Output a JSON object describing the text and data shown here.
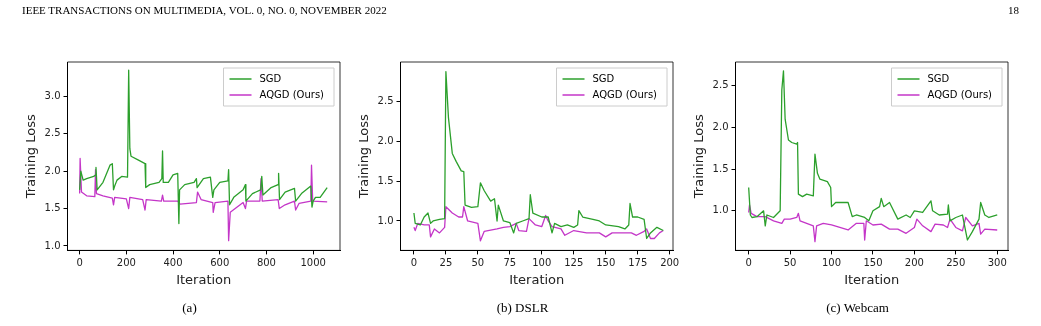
{
  "chart_data": [
    {
      "type": "line",
      "xlabel": "Iteration",
      "ylabel": "Training Loss",
      "xlim": [
        -52,
        1115
      ],
      "xticks": [
        0,
        200,
        400,
        600,
        800,
        1000
      ],
      "ylim": [
        0.94,
        3.46
      ],
      "yticks": [
        {
          "value": 1.0,
          "label": "1.0"
        },
        {
          "value": 1.5,
          "label": "1.5"
        },
        {
          "value": 2.0,
          "label": "2.0"
        },
        {
          "value": 2.5,
          "label": "2.5"
        },
        {
          "value": 3.0,
          "label": "3.0"
        }
      ],
      "grid": false,
      "legend": "top right",
      "marker": "none",
      "line_style": "solid",
      "annotations": [
        "IEEE TRANSACTIONS ON MULTIMEDIA, VOL. 0, NO. 0, NOVEMBER 2022",
        "18",
        "(a)"
      ],
      "series": [
        {
          "name": "SGD",
          "color": "#2ca02c",
          "x": [
            0,
            5,
            15,
            30,
            60,
            68,
            70,
            75,
            100,
            130,
            140,
            145,
            150,
            160,
            180,
            205,
            210,
            215,
            220,
            250,
            280,
            283,
            300,
            340,
            352,
            355,
            358,
            380,
            400,
            420,
            425,
            428,
            450,
            490,
            500,
            503,
            530,
            560,
            570,
            575,
            600,
            635,
            638,
            642,
            660,
            700,
            710,
            712,
            740,
            775,
            780,
            785,
            820,
            850,
            852,
            856,
            880,
            920,
            925,
            950,
            990,
            995,
            1000,
            1010,
            1030,
            1060
          ],
          "values": [
            1.75,
            2.0,
            1.88,
            1.9,
            1.93,
            1.95,
            2.05,
            1.75,
            1.85,
            2.08,
            2.1,
            1.75,
            1.8,
            1.88,
            1.93,
            1.92,
            3.35,
            2.3,
            2.2,
            2.15,
            2.1,
            1.78,
            1.82,
            1.85,
            1.9,
            2.27,
            1.85,
            1.85,
            1.95,
            1.97,
            1.3,
            1.75,
            1.82,
            1.85,
            1.9,
            1.78,
            1.9,
            1.92,
            1.65,
            1.75,
            1.85,
            1.87,
            2.02,
            1.55,
            1.65,
            1.75,
            1.82,
            1.6,
            1.7,
            1.75,
            1.93,
            1.68,
            1.78,
            1.82,
            1.97,
            1.62,
            1.72,
            1.77,
            1.6,
            1.7,
            1.8,
            1.52,
            1.6,
            1.65,
            1.65,
            1.78
          ]
        },
        {
          "name": "AQGD (Ours)",
          "color": "#c436c8",
          "x": [
            0,
            2,
            8,
            30,
            65,
            68,
            72,
            100,
            140,
            145,
            150,
            200,
            210,
            215,
            270,
            280,
            285,
            350,
            355,
            360,
            420,
            425,
            430,
            500,
            505,
            520,
            570,
            572,
            580,
            635,
            638,
            645,
            700,
            710,
            715,
            772,
            777,
            782,
            850,
            855,
            880,
            920,
            925,
            940,
            990,
            993,
            998,
            1060
          ],
          "values": [
            1.7,
            2.17,
            1.72,
            1.67,
            1.66,
            2.02,
            1.7,
            1.67,
            1.64,
            1.55,
            1.65,
            1.63,
            1.5,
            1.65,
            1.62,
            1.48,
            1.62,
            1.6,
            1.68,
            1.6,
            1.6,
            1.58,
            1.56,
            1.58,
            1.72,
            1.62,
            1.58,
            1.45,
            1.58,
            1.6,
            1.07,
            1.45,
            1.58,
            1.5,
            1.6,
            1.6,
            1.9,
            1.6,
            1.62,
            1.5,
            1.55,
            1.6,
            1.48,
            1.57,
            1.6,
            2.08,
            1.6,
            1.59
          ]
        }
      ]
    },
    {
      "type": "line",
      "xlabel": "Iteration",
      "ylabel": "Training Loss",
      "xlim": [
        -10.5,
        202.6
      ],
      "xticks": [
        0,
        25,
        50,
        75,
        100,
        125,
        150,
        175,
        200
      ],
      "ylim": [
        0.63,
        3.0
      ],
      "yticks": [
        {
          "value": 1.0,
          "label": "1.0"
        },
        {
          "value": 1.5,
          "label": "1.5"
        },
        {
          "value": 2.0,
          "label": "2.0"
        },
        {
          "value": 2.5,
          "label": "2.5"
        }
      ],
      "grid": false,
      "legend": "top right",
      "marker": "none",
      "line_style": "solid",
      "annotations": [
        "(b) DSLR"
      ],
      "series": [
        {
          "name": "SGD",
          "color": "#2ca02c",
          "x": [
            0,
            1,
            5,
            8,
            11,
            13,
            15,
            20,
            24,
            25,
            27,
            30,
            33,
            37,
            39,
            40,
            45,
            50,
            52,
            55,
            60,
            63,
            65,
            66,
            70,
            75,
            78,
            80,
            85,
            90,
            91,
            93,
            100,
            105,
            108,
            110,
            115,
            120,
            125,
            128,
            129,
            132,
            140,
            145,
            150,
            160,
            165,
            168,
            169,
            171,
            175,
            180,
            182,
            185,
            190,
            195
          ],
          "values": [
            1.1,
            0.97,
            0.95,
            1.05,
            1.1,
            0.97,
            1.0,
            1.02,
            1.03,
            2.88,
            2.3,
            1.85,
            1.75,
            1.63,
            1.62,
            1.2,
            1.17,
            1.18,
            1.48,
            1.38,
            1.25,
            1.28,
            1.0,
            1.2,
            1.0,
            0.98,
            0.85,
            0.97,
            1.0,
            1.03,
            1.33,
            1.1,
            1.05,
            1.05,
            0.85,
            0.97,
            0.93,
            0.95,
            0.92,
            0.95,
            1.13,
            1.05,
            1.02,
            1.0,
            0.95,
            0.93,
            0.9,
            0.95,
            1.22,
            1.05,
            1.05,
            1.02,
            0.78,
            0.85,
            0.92,
            0.88
          ]
        },
        {
          "name": "AQGD (Ours)",
          "color": "#c436c8",
          "x": [
            0,
            1,
            3,
            8,
            12,
            13,
            16,
            20,
            24,
            25,
            30,
            35,
            38,
            39,
            42,
            50,
            52,
            55,
            65,
            70,
            75,
            80,
            82,
            88,
            90,
            95,
            100,
            103,
            105,
            108,
            115,
            118,
            125,
            135,
            145,
            150,
            155,
            160,
            170,
            174,
            180,
            182,
            185,
            188,
            192,
            195
          ],
          "values": [
            0.92,
            0.88,
            0.97,
            0.95,
            0.95,
            0.8,
            0.9,
            0.85,
            0.92,
            1.18,
            1.1,
            1.05,
            1.05,
            1.18,
            1.0,
            0.97,
            0.75,
            0.87,
            0.9,
            0.92,
            0.93,
            0.97,
            0.88,
            0.87,
            1.03,
            0.95,
            0.93,
            1.07,
            1.0,
            0.93,
            0.9,
            0.82,
            0.88,
            0.85,
            0.85,
            0.8,
            0.85,
            0.85,
            0.85,
            0.82,
            0.87,
            0.9,
            0.78,
            0.78,
            0.85,
            0.88
          ]
        }
      ]
    },
    {
      "type": "line",
      "xlabel": "Iteration",
      "ylabel": "Training Loss",
      "xlim": [
        -15.9,
        313
      ],
      "xticks": [
        0,
        50,
        100,
        150,
        200,
        250,
        300
      ],
      "ylim": [
        0.525,
        2.786
      ],
      "yticks": [
        {
          "value": 1.0,
          "label": "1.0"
        },
        {
          "value": 1.5,
          "label": "1.5"
        },
        {
          "value": 2.0,
          "label": "2.0"
        },
        {
          "value": 2.5,
          "label": "2.5"
        }
      ],
      "grid": false,
      "legend": "top right",
      "marker": "none",
      "line_style": "solid",
      "annotations": [
        "(c) Webcam"
      ],
      "series": [
        {
          "name": "SGD",
          "color": "#2ca02c",
          "x": [
            0,
            2,
            4,
            10,
            18,
            20,
            22,
            30,
            38,
            40,
            42,
            44,
            48,
            52,
            58,
            59,
            60,
            65,
            70,
            78,
            80,
            83,
            86,
            95,
            99,
            100,
            105,
            115,
            120,
            125,
            130,
            140,
            145,
            150,
            158,
            160,
            163,
            170,
            180,
            190,
            195,
            200,
            210,
            220,
            222,
            230,
            240,
            241,
            243,
            250,
            258,
            262,
            264,
            270,
            278,
            280,
            285,
            290,
            300
          ],
          "values": [
            1.28,
            0.95,
            0.92,
            0.93,
            1.0,
            0.82,
            0.95,
            0.92,
            1.0,
            2.45,
            2.68,
            2.1,
            1.85,
            1.82,
            1.8,
            1.82,
            1.2,
            1.17,
            1.2,
            1.18,
            1.68,
            1.45,
            1.38,
            1.35,
            1.28,
            1.05,
            1.1,
            1.1,
            1.1,
            0.93,
            0.95,
            0.92,
            0.88,
            1.0,
            1.05,
            1.15,
            1.05,
            1.1,
            0.9,
            0.95,
            0.92,
            1.0,
            0.98,
            1.12,
            1.0,
            0.95,
            0.96,
            1.07,
            0.88,
            0.92,
            0.95,
            0.75,
            0.65,
            0.75,
            0.9,
            1.1,
            0.95,
            0.92,
            0.95
          ]
        },
        {
          "name": "AQGD (Ours)",
          "color": "#c436c8",
          "x": [
            0,
            1,
            3,
            10,
            20,
            30,
            40,
            43,
            50,
            58,
            60,
            62,
            70,
            78,
            80,
            82,
            90,
            100,
            110,
            120,
            130,
            139,
            140,
            142,
            150,
            160,
            170,
            180,
            190,
            200,
            203,
            210,
            220,
            225,
            235,
            240,
            243,
            250,
            258,
            262,
            270,
            278,
            280,
            285,
            300
          ],
          "values": [
            0.98,
            1.07,
            0.97,
            0.93,
            0.93,
            0.88,
            0.85,
            0.9,
            0.9,
            0.92,
            0.97,
            0.88,
            0.85,
            0.82,
            0.63,
            0.82,
            0.85,
            0.83,
            0.8,
            0.77,
            0.85,
            0.85,
            0.65,
            0.88,
            0.83,
            0.84,
            0.78,
            0.78,
            0.73,
            0.8,
            0.9,
            0.82,
            0.75,
            0.84,
            0.83,
            0.8,
            0.9,
            0.8,
            0.76,
            0.92,
            0.82,
            0.85,
            0.72,
            0.78,
            0.77
          ]
        }
      ]
    }
  ]
}
